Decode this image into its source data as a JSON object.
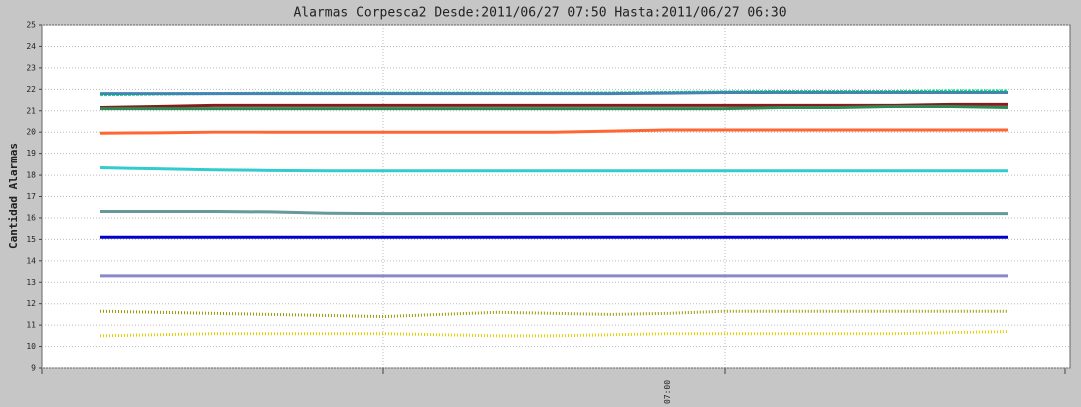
{
  "chart_data": {
    "type": "line",
    "title": "Alarmas Corpesca2 Desde:2011/06/27 07:50 Hasta:2011/06/27 06:30",
    "y_label": "Cantidad Alarmas",
    "categories": [
      null,
      null,
      null,
      null,
      null,
      null,
      null,
      null,
      null,
      null,
      "07:00",
      null,
      null,
      null,
      null,
      null,
      null
    ],
    "ylim": [
      9,
      25
    ],
    "yticks": [
      9,
      10,
      11,
      12,
      13,
      14,
      15,
      16,
      17,
      18,
      19,
      20,
      21,
      22,
      23,
      24,
      25
    ],
    "grid": true,
    "series": [
      {
        "color": "#00ee77",
        "dash": "3 1",
        "values": [
          21.75,
          21.78,
          21.8,
          21.82,
          21.82,
          21.82,
          21.82,
          21.82,
          21.82,
          21.83,
          21.85,
          21.88,
          21.9,
          21.9,
          21.9,
          21.92,
          21.92
        ]
      },
      {
        "color": "#4682b4",
        "values": [
          21.8,
          21.8,
          21.8,
          21.8,
          21.8,
          21.8,
          21.8,
          21.8,
          21.8,
          21.8,
          21.82,
          21.85,
          21.85,
          21.85,
          21.85,
          21.85,
          21.85
        ]
      },
      {
        "color": "#8b1a1a",
        "values": [
          21.15,
          21.2,
          21.25,
          21.25,
          21.25,
          21.25,
          21.25,
          21.25,
          21.25,
          21.25,
          21.25,
          21.25,
          21.25,
          21.25,
          21.25,
          21.3,
          21.3
        ]
      },
      {
        "color": "#2e8b57",
        "values": [
          21.1,
          21.1,
          21.1,
          21.1,
          21.1,
          21.1,
          21.1,
          21.1,
          21.1,
          21.1,
          21.1,
          21.1,
          21.15,
          21.15,
          21.2,
          21.2,
          21.15
        ]
      },
      {
        "color": "#ff6633",
        "values": [
          19.95,
          19.97,
          20.0,
          20.0,
          20.0,
          20.0,
          20.0,
          20.0,
          20.0,
          20.05,
          20.1,
          20.1,
          20.1,
          20.1,
          20.1,
          20.1,
          20.1
        ]
      },
      {
        "color": "#33cccc",
        "values": [
          18.35,
          18.3,
          18.25,
          18.22,
          18.2,
          18.2,
          18.2,
          18.2,
          18.2,
          18.2,
          18.2,
          18.2,
          18.2,
          18.2,
          18.2,
          18.2,
          18.2
        ]
      },
      {
        "color": "#669999",
        "values": [
          16.3,
          16.3,
          16.3,
          16.28,
          16.22,
          16.2,
          16.2,
          16.2,
          16.2,
          16.2,
          16.2,
          16.2,
          16.2,
          16.2,
          16.2,
          16.2,
          16.2
        ]
      },
      {
        "color": "#0000cc",
        "values": [
          15.1,
          15.1,
          15.1,
          15.1,
          15.1,
          15.1,
          15.1,
          15.1,
          15.1,
          15.1,
          15.1,
          15.1,
          15.1,
          15.1,
          15.1,
          15.1,
          15.1
        ]
      },
      {
        "color": "#8888cc",
        "values": [
          13.3,
          13.3,
          13.3,
          13.3,
          13.3,
          13.3,
          13.3,
          13.3,
          13.3,
          13.3,
          13.3,
          13.3,
          13.3,
          13.3,
          13.3,
          13.3,
          13.3
        ]
      },
      {
        "color": "#999900",
        "dash": "1 2",
        "values": [
          11.65,
          11.6,
          11.55,
          11.5,
          11.45,
          11.4,
          11.5,
          11.6,
          11.55,
          11.5,
          11.55,
          11.65,
          11.65,
          11.65,
          11.65,
          11.65,
          11.65
        ]
      },
      {
        "color": "#e0d000",
        "dash": "1 2",
        "values": [
          10.5,
          10.55,
          10.6,
          10.6,
          10.6,
          10.6,
          10.55,
          10.5,
          10.5,
          10.55,
          10.6,
          10.6,
          10.6,
          10.6,
          10.6,
          10.65,
          10.7
        ]
      }
    ]
  }
}
